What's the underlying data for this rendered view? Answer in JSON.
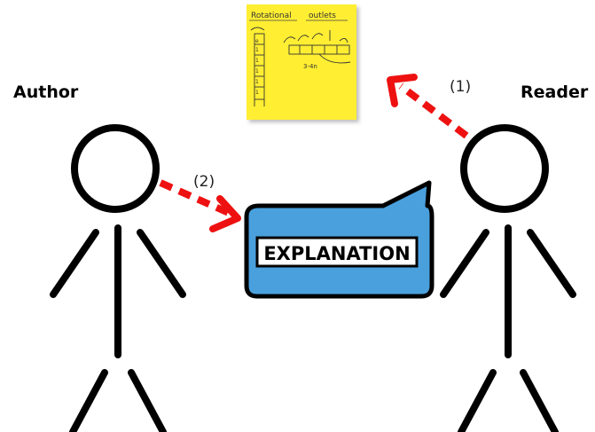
{
  "actors": {
    "author": "Author",
    "reader": "Reader"
  },
  "steps": {
    "reader_to_note": "(1)",
    "author_to_explanation": "(2)"
  },
  "explanation": {
    "label": "EXPLANATION"
  },
  "sticky_note": {
    "title_left": "Rotational",
    "title_right": "outlets",
    "caption": "3-4n"
  },
  "colors": {
    "sticky_note": "#ffee33",
    "speech_bubble": "#4aa0dd",
    "arrow": "#ee1111",
    "stroke": "#000000"
  }
}
